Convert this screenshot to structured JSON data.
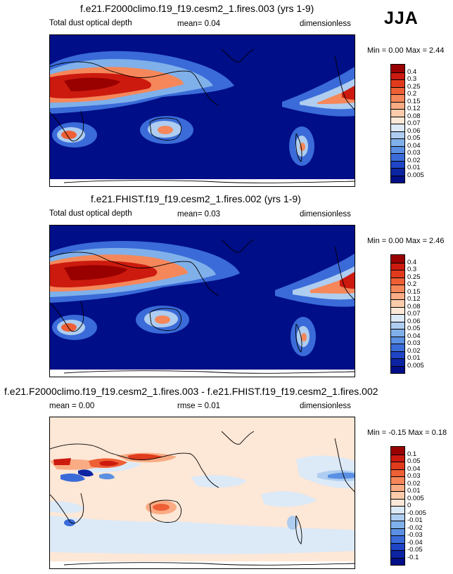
{
  "season": "JJA",
  "panels": [
    {
      "title": "f.e21.F2000climo.f19_f19.cesm2_1.fires.003 (yrs 1-9)",
      "left_label": "Total dust optical depth",
      "center_label": "mean=   0.04",
      "right_label": "dimensionless",
      "minmax": "Min =   0.00 Max =   2.44"
    },
    {
      "title": "f.e21.FHIST.f19_f19.cesm2_1.fires.002 (yrs 1-9)",
      "left_label": "Total dust optical depth",
      "center_label": "mean=   0.03",
      "right_label": "dimensionless",
      "minmax": "Min =   0.00 Max =   2.46"
    },
    {
      "title": "f.e21.F2000climo.f19_f19.cesm2_1.fires.003 - f.e21.FHIST.f19_f19.cesm2_1.fires.002",
      "left_label": "mean =   0.00",
      "center_label": "rmse =   0.01",
      "right_label": "dimensionless",
      "minmax": "Min =  -0.15 Max =   0.18"
    }
  ],
  "chart_data": [
    {
      "type": "heatmap",
      "title": "f.e21.F2000climo.f19_f19.cesm2_1.fires.003 (yrs 1-9)",
      "variable": "Total dust optical depth",
      "units": "dimensionless",
      "mean": 0.04,
      "min": 0.0,
      "max": 2.44,
      "colorbar_levels": [
        "0.4",
        "0.3",
        "0.25",
        "0.2",
        "0.15",
        "0.12",
        "0.08",
        "0.07",
        "0.06",
        "0.05",
        "0.04",
        "0.03",
        "0.02",
        "0.01",
        "0.005"
      ],
      "colorbar_colors": [
        "#990000",
        "#cc1a0f",
        "#e03b1d",
        "#ee5f35",
        "#f5875a",
        "#f9ab83",
        "#fbcbaa",
        "#fde7d6",
        "#dce9f7",
        "#aecdf0",
        "#80b0ea",
        "#5a8fe3",
        "#3a6bd8",
        "#1f45c6",
        "#0c24a2",
        "#000e87"
      ]
    },
    {
      "type": "heatmap",
      "title": "f.e21.FHIST.f19_f19.cesm2_1.fires.002 (yrs 1-9)",
      "variable": "Total dust optical depth",
      "units": "dimensionless",
      "mean": 0.03,
      "min": 0.0,
      "max": 2.46,
      "colorbar_levels": [
        "0.4",
        "0.3",
        "0.25",
        "0.2",
        "0.15",
        "0.12",
        "0.08",
        "0.07",
        "0.06",
        "0.05",
        "0.04",
        "0.03",
        "0.02",
        "0.01",
        "0.005"
      ],
      "colorbar_colors": [
        "#990000",
        "#cc1a0f",
        "#e03b1d",
        "#ee5f35",
        "#f5875a",
        "#f9ab83",
        "#fbcbaa",
        "#fde7d6",
        "#dce9f7",
        "#aecdf0",
        "#80b0ea",
        "#5a8fe3",
        "#3a6bd8",
        "#1f45c6",
        "#0c24a2",
        "#000e87"
      ]
    },
    {
      "type": "heatmap",
      "title": "f.e21.F2000climo.f19_f19.cesm2_1.fires.003 - f.e21.FHIST.f19_f19.cesm2_1.fires.002",
      "units": "dimensionless",
      "mean": 0.0,
      "rmse": 0.01,
      "min": -0.15,
      "max": 0.18,
      "colorbar_levels": [
        "0.1",
        "0.05",
        "0.04",
        "0.03",
        "0.02",
        "0.01",
        "0.005",
        "0",
        "-0.005",
        "-0.01",
        "-0.02",
        "-0.03",
        "-0.04",
        "-0.05",
        "-0.1"
      ],
      "colorbar_colors": [
        "#990000",
        "#cc1a0f",
        "#e03b1d",
        "#ee5f35",
        "#f5875a",
        "#f9ab83",
        "#fbcbaa",
        "#fde7d6",
        "#dce9f7",
        "#aecdf0",
        "#80b0ea",
        "#5a8fe3",
        "#3a6bd8",
        "#1f45c6",
        "#0c24a2",
        "#000e87"
      ]
    }
  ]
}
